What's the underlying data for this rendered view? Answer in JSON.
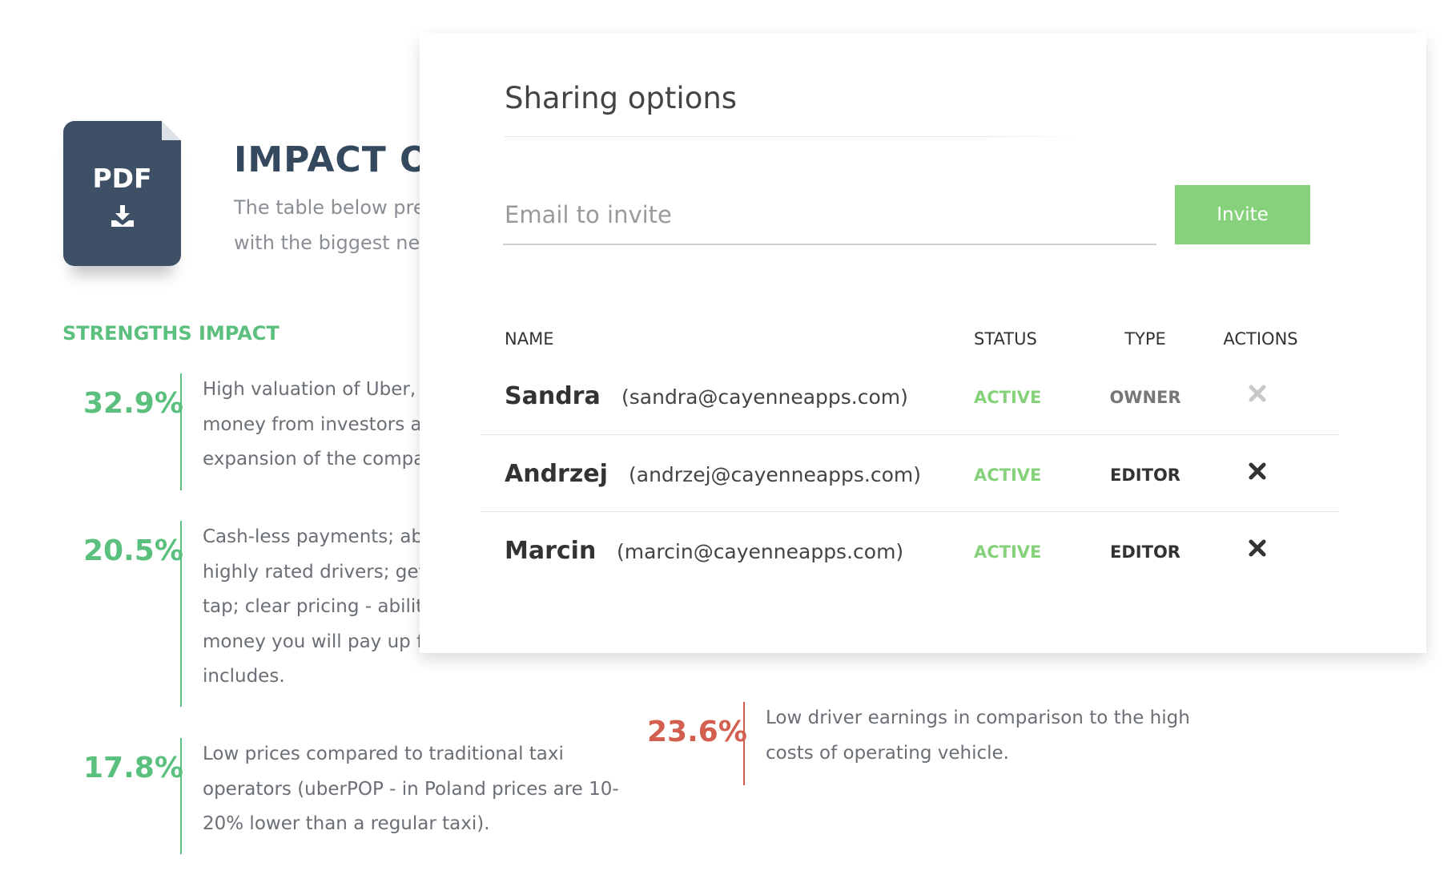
{
  "document": {
    "icon_label": "PDF",
    "title": "IMPACT OF",
    "description_lines": [
      "The table below pres",
      "with the biggest nega"
    ],
    "strengths": {
      "heading": "STRENGTHS IMPACT",
      "items": [
        {
          "percent": "32.9%",
          "lines": [
            "High valuation of Uber, lar",
            "money from investors are",
            "expansion of the company"
          ]
        },
        {
          "percent": "20.5%",
          "lines": [
            "Cash-less payments; abilit",
            "highly rated drivers; gettin",
            "tap; clear pricing - ability t",
            "money you will pay up fro",
            "includes."
          ]
        },
        {
          "percent": "17.8%",
          "lines": [
            "Low prices compared to traditional taxi",
            "operators (uberPOP - in Poland prices are 10-",
            "20% lower than a regular taxi)."
          ]
        }
      ]
    },
    "weaknesses": {
      "items": [
        {
          "percent": "23.6%",
          "lines": [
            "Low driver earnings in comparison to the high",
            "costs of operating vehicle."
          ]
        }
      ]
    }
  },
  "modal": {
    "title": "Sharing options",
    "email_placeholder": "Email to invite",
    "invite_button": "Invite",
    "columns": [
      "NAME",
      "STATUS",
      "TYPE",
      "ACTIONS"
    ],
    "rows": [
      {
        "name": "Sandra",
        "email": "(sandra@cayenneapps.com)",
        "status": "ACTIVE",
        "type": "OWNER",
        "removable": false
      },
      {
        "name": "Andrzej",
        "email": "(andrzej@cayenneapps.com)",
        "status": "ACTIVE",
        "type": "EDITOR",
        "removable": true
      },
      {
        "name": "Marcin",
        "email": "(marcin@cayenneapps.com)",
        "status": "ACTIVE",
        "type": "EDITOR",
        "removable": true
      }
    ]
  }
}
